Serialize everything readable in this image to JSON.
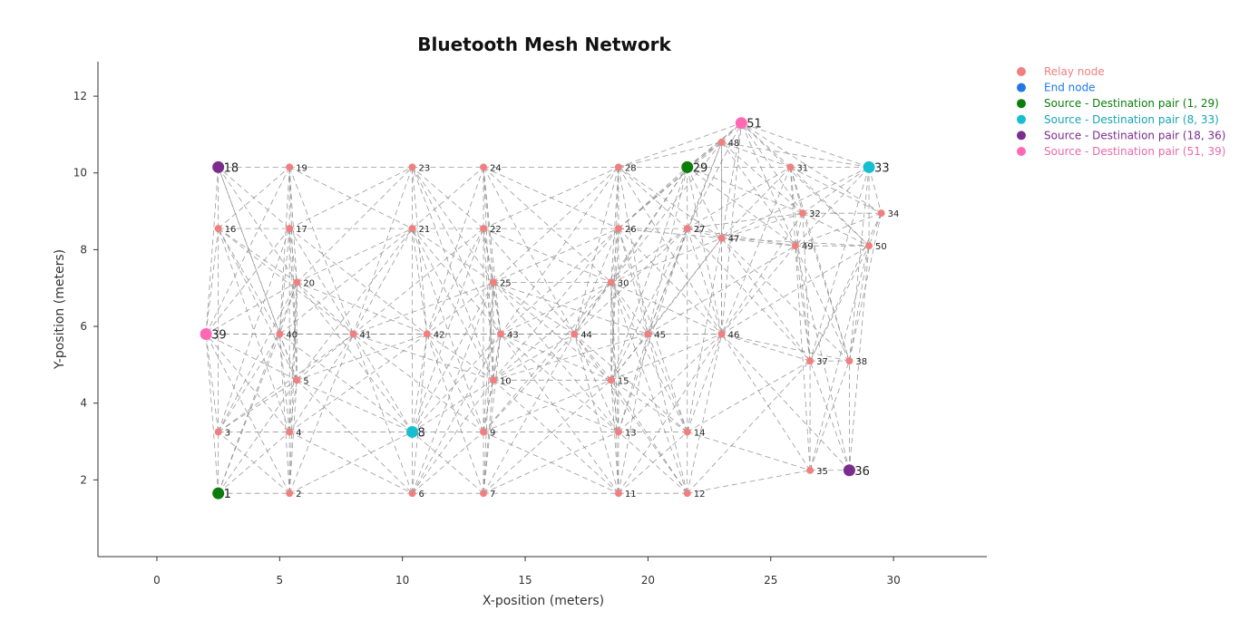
{
  "chart_data": {
    "type": "scatter",
    "title": "Bluetooth Mesh Network",
    "xlabel": "X-position (meters)",
    "ylabel": "Y-position (meters)",
    "xlim": [
      -2.4,
      33.8
    ],
    "ylim": [
      0.0,
      12.9
    ],
    "x_ticks": [
      0,
      5,
      10,
      15,
      20,
      25,
      30
    ],
    "y_ticks": [
      2,
      4,
      6,
      8,
      10,
      12
    ],
    "grid": false,
    "legend_position": "top-right",
    "legend": [
      {
        "label": "Relay node",
        "color": "#f08080"
      },
      {
        "label": "End node",
        "color": "#1f77e4"
      },
      {
        "label": "Source - Destination pair (1, 29)",
        "color": "#0a7d0a"
      },
      {
        "label": "Source - Destination pair (8, 33)",
        "color": "#17becf"
      },
      {
        "label": "Source - Destination pair (18, 36)",
        "color": "#7b2d8e"
      },
      {
        "label": "Source - Destination pair (51, 39)",
        "color": "#ff69b4"
      }
    ],
    "nodes": [
      {
        "id": "1",
        "x": 2.5,
        "y": 1.65,
        "role": "pair-1-29"
      },
      {
        "id": "2",
        "x": 5.4,
        "y": 1.65,
        "role": "relay"
      },
      {
        "id": "3",
        "x": 2.5,
        "y": 3.25,
        "role": "relay"
      },
      {
        "id": "4",
        "x": 5.4,
        "y": 3.25,
        "role": "relay"
      },
      {
        "id": "5",
        "x": 5.7,
        "y": 4.6,
        "role": "relay"
      },
      {
        "id": "6",
        "x": 10.4,
        "y": 1.65,
        "role": "relay"
      },
      {
        "id": "7",
        "x": 13.3,
        "y": 1.65,
        "role": "relay"
      },
      {
        "id": "8",
        "x": 10.4,
        "y": 3.25,
        "role": "pair-8-33"
      },
      {
        "id": "9",
        "x": 13.3,
        "y": 3.25,
        "role": "relay"
      },
      {
        "id": "10",
        "x": 13.7,
        "y": 4.6,
        "role": "relay"
      },
      {
        "id": "11",
        "x": 18.8,
        "y": 1.65,
        "role": "relay"
      },
      {
        "id": "12",
        "x": 21.6,
        "y": 1.65,
        "role": "relay"
      },
      {
        "id": "13",
        "x": 18.8,
        "y": 3.25,
        "role": "relay"
      },
      {
        "id": "14",
        "x": 21.6,
        "y": 3.25,
        "role": "relay"
      },
      {
        "id": "15",
        "x": 18.5,
        "y": 4.6,
        "role": "relay"
      },
      {
        "id": "16",
        "x": 2.5,
        "y": 8.55,
        "role": "relay"
      },
      {
        "id": "17",
        "x": 5.4,
        "y": 8.55,
        "role": "relay"
      },
      {
        "id": "18",
        "x": 2.5,
        "y": 10.15,
        "role": "pair-18-36"
      },
      {
        "id": "19",
        "x": 5.4,
        "y": 10.15,
        "role": "relay"
      },
      {
        "id": "20",
        "x": 5.7,
        "y": 7.15,
        "role": "relay"
      },
      {
        "id": "21",
        "x": 10.4,
        "y": 8.55,
        "role": "relay"
      },
      {
        "id": "22",
        "x": 13.3,
        "y": 8.55,
        "role": "relay"
      },
      {
        "id": "23",
        "x": 10.4,
        "y": 10.15,
        "role": "relay"
      },
      {
        "id": "24",
        "x": 13.3,
        "y": 10.15,
        "role": "relay"
      },
      {
        "id": "25",
        "x": 13.7,
        "y": 7.15,
        "role": "relay"
      },
      {
        "id": "26",
        "x": 18.8,
        "y": 8.55,
        "role": "relay"
      },
      {
        "id": "27",
        "x": 21.6,
        "y": 8.55,
        "role": "relay"
      },
      {
        "id": "28",
        "x": 18.8,
        "y": 10.15,
        "role": "relay"
      },
      {
        "id": "29",
        "x": 21.6,
        "y": 10.15,
        "role": "pair-1-29"
      },
      {
        "id": "30",
        "x": 18.5,
        "y": 7.15,
        "role": "relay"
      },
      {
        "id": "31",
        "x": 25.8,
        "y": 10.15,
        "role": "relay"
      },
      {
        "id": "32",
        "x": 26.3,
        "y": 8.95,
        "role": "relay"
      },
      {
        "id": "33",
        "x": 29.0,
        "y": 10.15,
        "role": "pair-8-33"
      },
      {
        "id": "34",
        "x": 29.5,
        "y": 8.95,
        "role": "relay"
      },
      {
        "id": "35",
        "x": 26.6,
        "y": 2.25,
        "role": "relay"
      },
      {
        "id": "36",
        "x": 28.2,
        "y": 2.25,
        "role": "pair-18-36"
      },
      {
        "id": "37",
        "x": 26.6,
        "y": 5.1,
        "role": "relay"
      },
      {
        "id": "38",
        "x": 28.2,
        "y": 5.1,
        "role": "relay"
      },
      {
        "id": "39",
        "x": 2.0,
        "y": 5.8,
        "role": "pair-51-39"
      },
      {
        "id": "40",
        "x": 5.0,
        "y": 5.8,
        "role": "relay"
      },
      {
        "id": "41",
        "x": 8.0,
        "y": 5.8,
        "role": "relay"
      },
      {
        "id": "42",
        "x": 11.0,
        "y": 5.8,
        "role": "relay"
      },
      {
        "id": "43",
        "x": 14.0,
        "y": 5.8,
        "role": "relay"
      },
      {
        "id": "44",
        "x": 17.0,
        "y": 5.8,
        "role": "relay"
      },
      {
        "id": "45",
        "x": 20.0,
        "y": 5.8,
        "role": "relay"
      },
      {
        "id": "46",
        "x": 23.0,
        "y": 5.8,
        "role": "relay"
      },
      {
        "id": "47",
        "x": 23.0,
        "y": 8.3,
        "role": "relay"
      },
      {
        "id": "48",
        "x": 23.0,
        "y": 10.8,
        "role": "relay"
      },
      {
        "id": "49",
        "x": 26.0,
        "y": 8.1,
        "role": "relay"
      },
      {
        "id": "50",
        "x": 29.0,
        "y": 8.1,
        "role": "relay"
      },
      {
        "id": "51",
        "x": 23.8,
        "y": 11.3,
        "role": "pair-51-39"
      }
    ],
    "link_range": 6.5,
    "link_color": "#888888"
  },
  "colors": {
    "relay": "#f08080",
    "end": "#1f77e4",
    "pair-1-29": "#0a7d0a",
    "pair-8-33": "#17becf",
    "pair-18-36": "#7b2d8e",
    "pair-51-39": "#ff69b4",
    "legend_text": {
      "relay": "#f08080",
      "end": "#1f77e4",
      "pair-1-29": "#0a7d0a",
      "pair-8-33": "#17a5b5",
      "pair-18-36": "#7b2d8e",
      "pair-51-39": "#e86aa8"
    }
  }
}
